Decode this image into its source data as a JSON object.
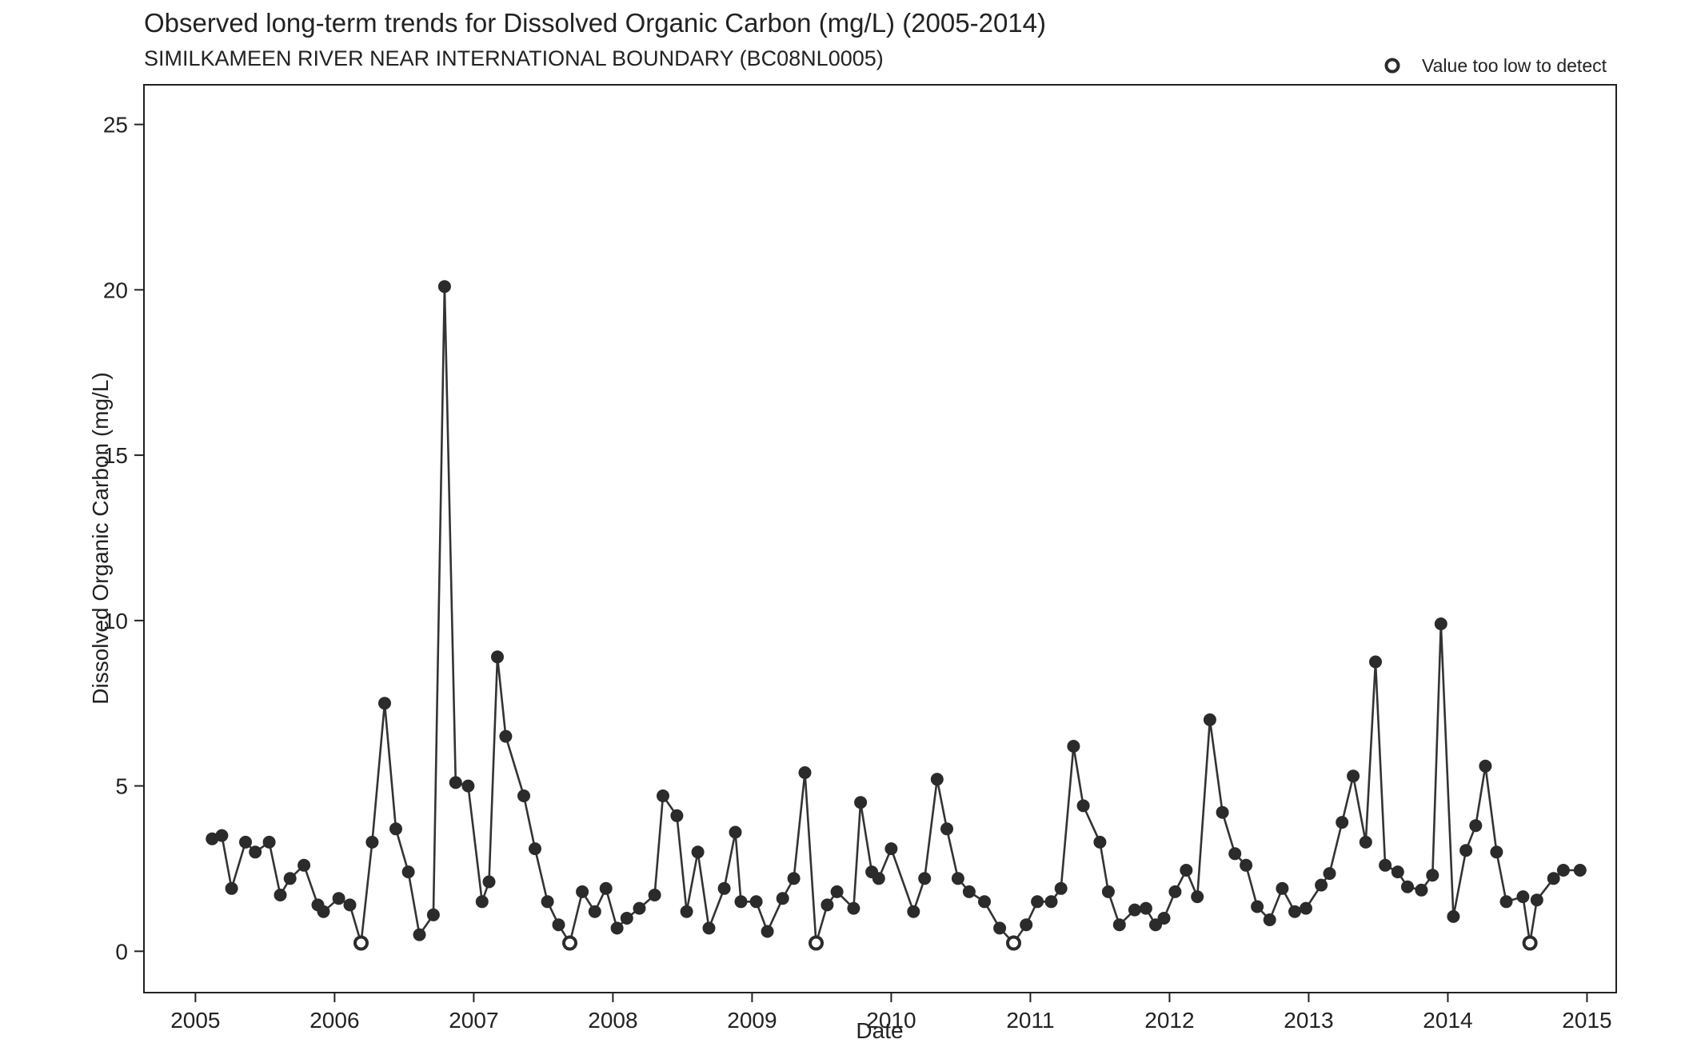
{
  "chart_data": {
    "type": "scatter",
    "title": "Observed long-term trends for Dissolved Organic Carbon (mg/L) (2005-2014)",
    "subtitle": "SIMILKAMEEN RIVER NEAR INTERNATIONAL BOUNDARY (BC08NL0005)",
    "xlabel": "Date",
    "ylabel": "Dissolved Organic Carbon (mg/L)",
    "xlim": [
      2004.63,
      2015.21
    ],
    "ylim": [
      -1.25,
      26.2
    ],
    "x_ticks": [
      2005,
      2006,
      2007,
      2008,
      2009,
      2010,
      2011,
      2012,
      2013,
      2014,
      2015
    ],
    "x_tick_labels": [
      "2005",
      "2006",
      "2007",
      "2008",
      "2009",
      "2010",
      "2011",
      "2012",
      "2013",
      "2014",
      "2015"
    ],
    "y_ticks": [
      0,
      5,
      10,
      15,
      20,
      25
    ],
    "y_tick_labels": [
      "0",
      "5",
      "10",
      "15",
      "20",
      "25"
    ],
    "grid": false,
    "legend": {
      "position": "top-right",
      "entries": [
        {
          "label": "Value too low to detect",
          "marker": "open-circle"
        }
      ]
    },
    "colors": {
      "series": "#333333",
      "points": "#2b2b2b",
      "background": "#ffffff"
    },
    "series": [
      {
        "x": [
          2005.12,
          2005.19,
          2005.26,
          2005.36,
          2005.43,
          2005.53,
          2005.61,
          2005.68,
          2005.78,
          2005.88,
          2005.92,
          2006.03,
          2006.11,
          2006.19,
          2006.27,
          2006.36,
          2006.44,
          2006.53,
          2006.61,
          2006.71,
          2006.79,
          2006.87,
          2006.96,
          2007.06,
          2007.11,
          2007.17,
          2007.23,
          2007.36,
          2007.44,
          2007.53,
          2007.61,
          2007.69,
          2007.78,
          2007.87,
          2007.95,
          2008.03,
          2008.1,
          2008.19,
          2008.3,
          2008.36,
          2008.46,
          2008.53,
          2008.61,
          2008.69,
          2008.8,
          2008.88,
          2008.92,
          2009.03,
          2009.11,
          2009.22,
          2009.3,
          2009.38,
          2009.46,
          2009.54,
          2009.61,
          2009.73,
          2009.78,
          2009.86,
          2009.91,
          2010.0,
          2010.16,
          2010.24,
          2010.33,
          2010.4,
          2010.48,
          2010.56,
          2010.67,
          2010.78,
          2010.88,
          2010.97,
          2011.05,
          2011.15,
          2011.22,
          2011.31,
          2011.38,
          2011.5,
          2011.56,
          2011.64,
          2011.75,
          2011.83,
          2011.9,
          2011.96,
          2012.04,
          2012.12,
          2012.2,
          2012.29,
          2012.38,
          2012.47,
          2012.55,
          2012.63,
          2012.72,
          2012.81,
          2012.9,
          2012.98,
          2013.09,
          2013.15,
          2013.24,
          2013.32,
          2013.41,
          2013.48,
          2013.55,
          2013.64,
          2013.71,
          2013.81,
          2013.89,
          2013.95,
          2014.04,
          2014.13,
          2014.2,
          2014.27,
          2014.35,
          2014.42,
          2014.54,
          2014.59,
          2014.64,
          2014.76,
          2014.83,
          2014.95
        ],
        "y": [
          3.4,
          3.5,
          1.9,
          3.3,
          3.0,
          3.3,
          1.7,
          2.2,
          2.6,
          1.4,
          1.2,
          1.6,
          1.4,
          0.25,
          3.3,
          7.5,
          3.7,
          2.4,
          0.5,
          1.1,
          20.1,
          5.1,
          5.0,
          1.5,
          2.1,
          8.9,
          6.5,
          4.7,
          3.1,
          1.5,
          0.8,
          0.25,
          1.8,
          1.2,
          1.9,
          0.7,
          1.0,
          1.3,
          1.7,
          4.7,
          4.1,
          1.2,
          3.0,
          0.7,
          1.9,
          3.6,
          1.5,
          1.5,
          0.6,
          1.6,
          2.2,
          5.4,
          0.25,
          1.4,
          1.8,
          1.3,
          4.5,
          2.4,
          2.2,
          3.1,
          1.2,
          2.2,
          5.2,
          3.7,
          2.2,
          1.8,
          1.5,
          0.7,
          0.25,
          0.8,
          1.5,
          1.5,
          1.9,
          6.2,
          4.4,
          3.3,
          1.8,
          0.8,
          1.25,
          1.3,
          0.8,
          1.0,
          1.8,
          2.45,
          1.65,
          7.0,
          4.2,
          2.95,
          2.6,
          1.35,
          0.95,
          1.9,
          1.2,
          1.3,
          2.0,
          2.35,
          3.9,
          5.3,
          3.3,
          8.75,
          2.6,
          2.4,
          1.95,
          1.85,
          2.3,
          9.9,
          1.05,
          3.05,
          3.8,
          5.6,
          3.0,
          1.5,
          1.65,
          0.25,
          1.55,
          2.2,
          2.45,
          2.45
        ],
        "low_detect_indices": [
          13,
          31,
          52,
          68,
          113
        ]
      }
    ]
  }
}
